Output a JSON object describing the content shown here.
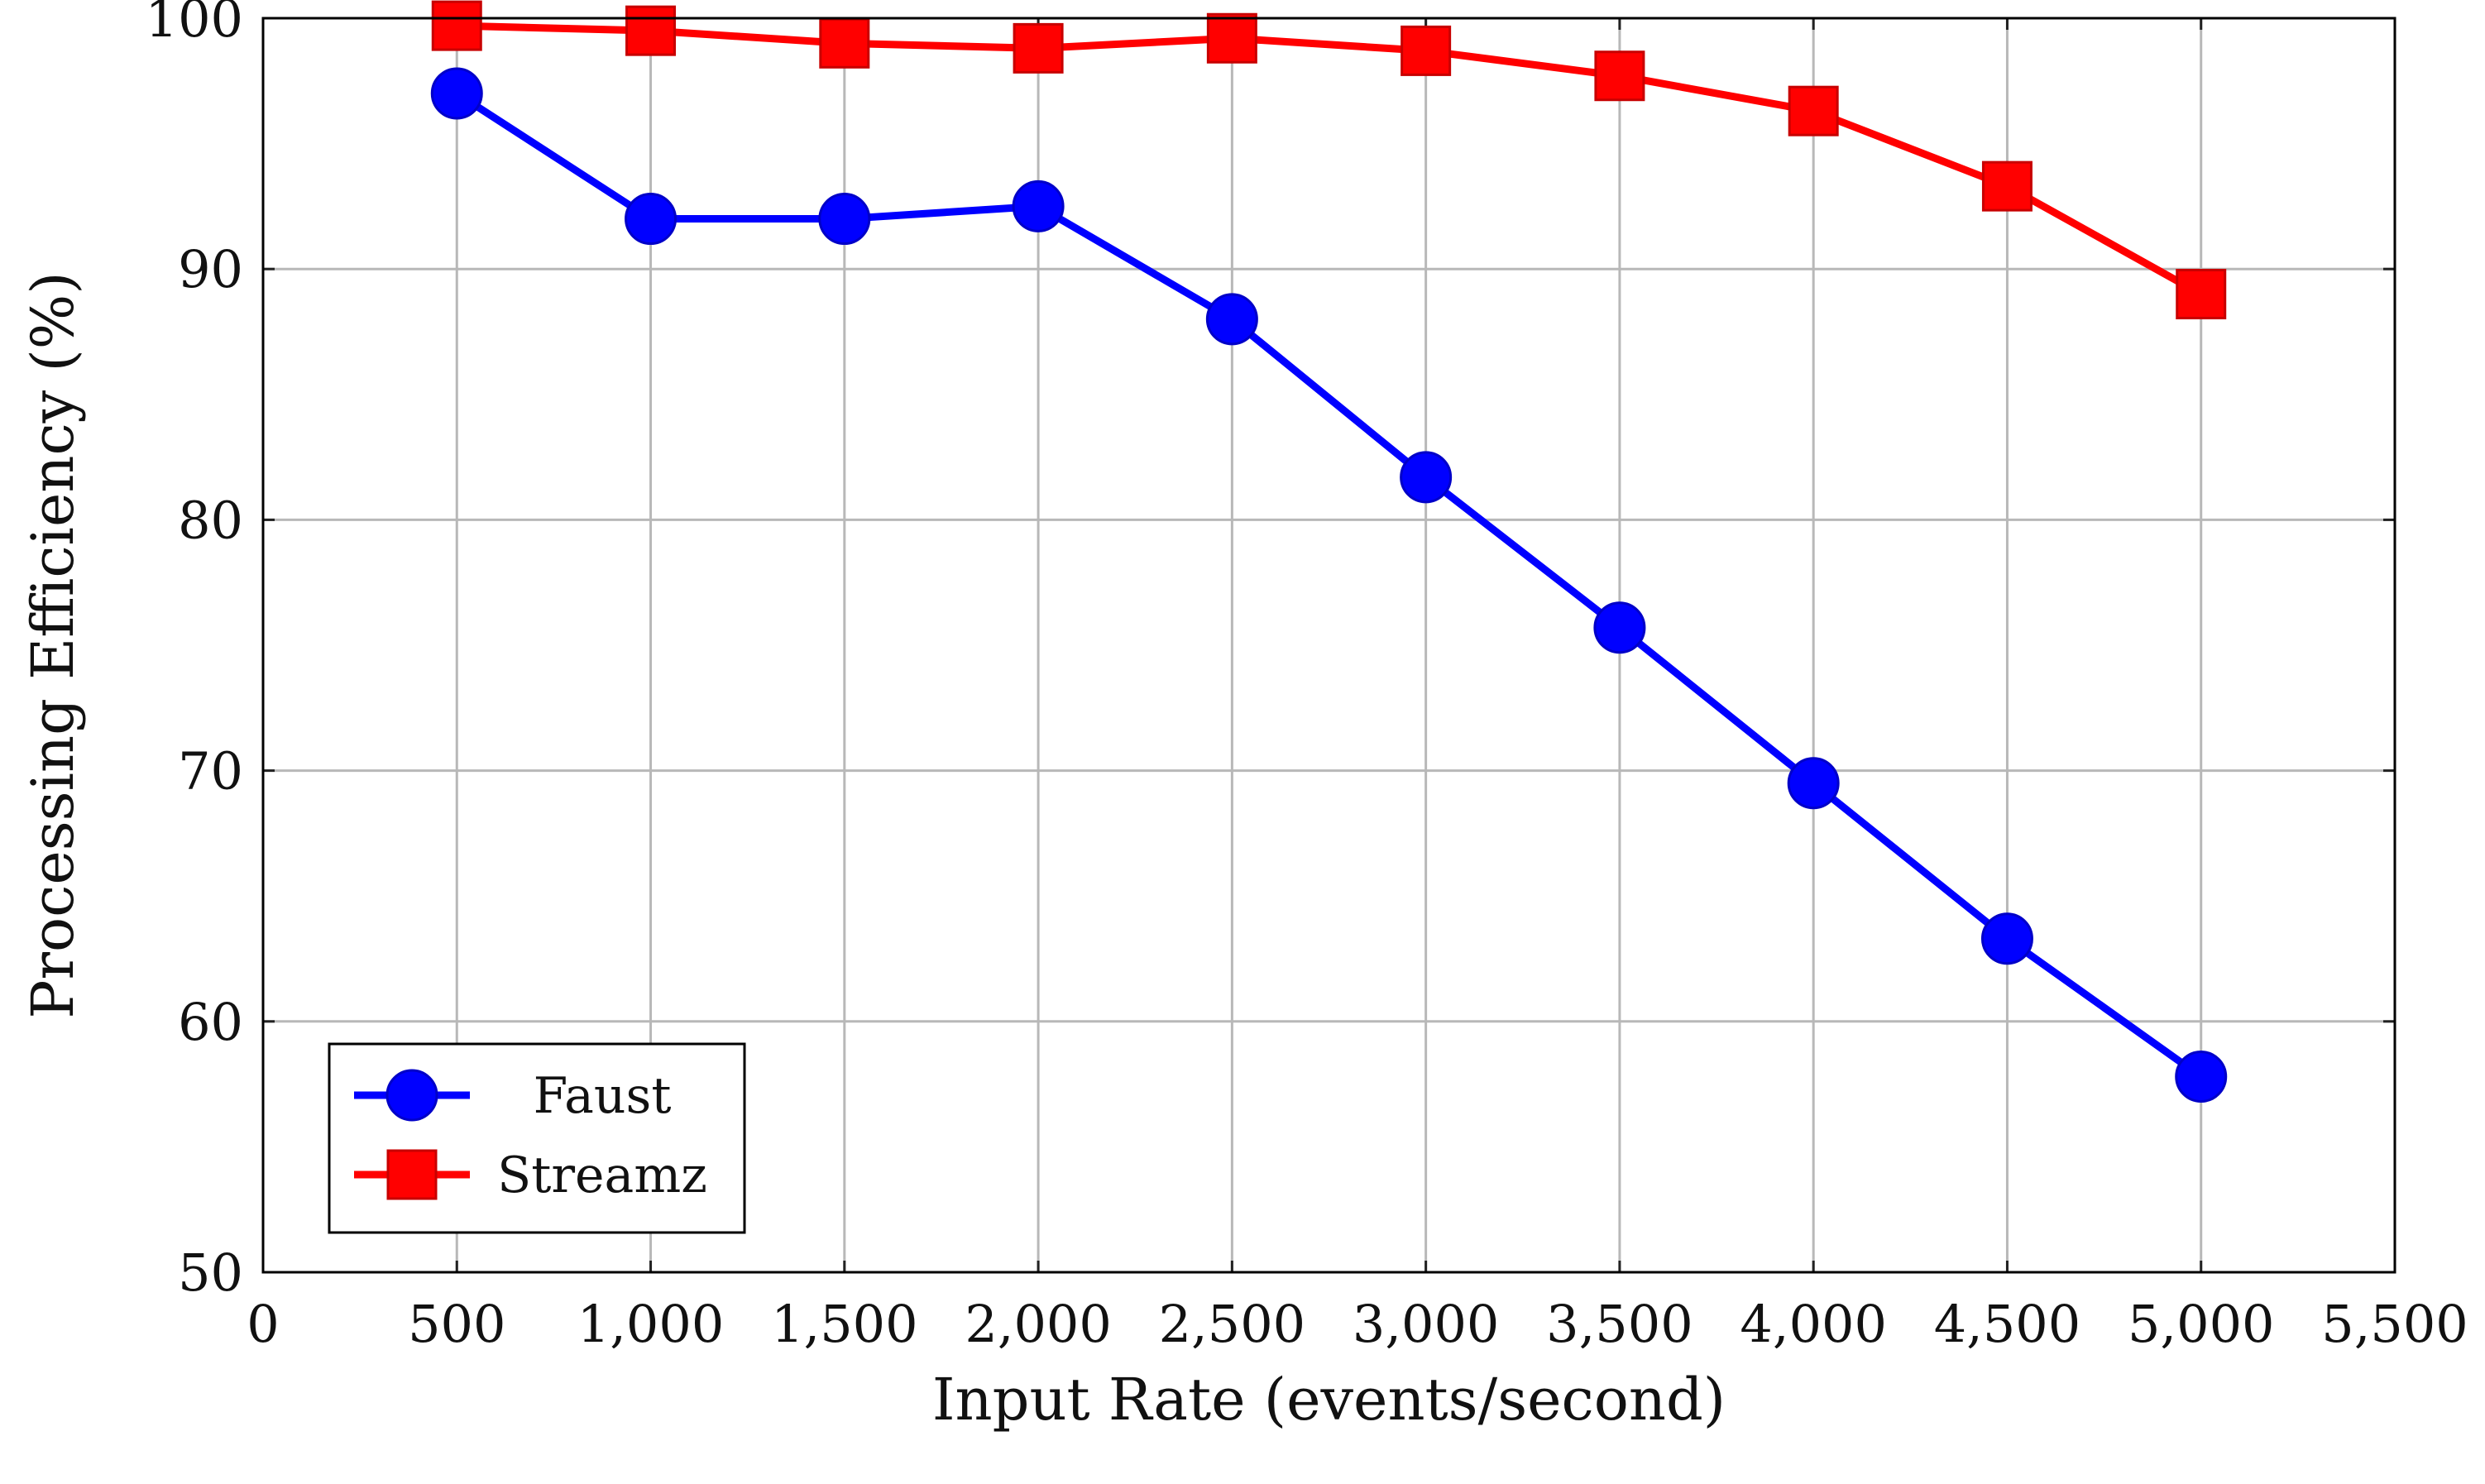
{
  "chart_data": {
    "type": "line",
    "title": "",
    "xlabel": "Input Rate (events/second)",
    "ylabel": "Processing Efficiency (%)",
    "xlim": [
      0,
      5500
    ],
    "ylim": [
      50,
      100
    ],
    "grid": true,
    "legend_position": "bottom-left",
    "x_ticks": [
      {
        "value": 0,
        "label": "0"
      },
      {
        "value": 500,
        "label": "500"
      },
      {
        "value": 1000,
        "label": "1,000"
      },
      {
        "value": 1500,
        "label": "1,500"
      },
      {
        "value": 2000,
        "label": "2,000"
      },
      {
        "value": 2500,
        "label": "2,500"
      },
      {
        "value": 3000,
        "label": "3,000"
      },
      {
        "value": 3500,
        "label": "3,500"
      },
      {
        "value": 4000,
        "label": "4,000"
      },
      {
        "value": 4500,
        "label": "4,500"
      },
      {
        "value": 5000,
        "label": "5,000"
      },
      {
        "value": 5500,
        "label": "5,500"
      }
    ],
    "y_ticks": [
      {
        "value": 50,
        "label": "50"
      },
      {
        "value": 60,
        "label": "60"
      },
      {
        "value": 70,
        "label": "70"
      },
      {
        "value": 80,
        "label": "80"
      },
      {
        "value": 90,
        "label": "90"
      },
      {
        "value": 100,
        "label": "100"
      }
    ],
    "x": [
      500,
      1000,
      1500,
      2000,
      2500,
      3000,
      3500,
      4000,
      4500,
      5000
    ],
    "series": [
      {
        "name": "Faust",
        "color": "#0000ff",
        "marker": "circle",
        "values": [
          97.0,
          92.0,
          92.0,
          92.5,
          88.0,
          81.7,
          75.7,
          69.5,
          63.3,
          57.8
        ]
      },
      {
        "name": "Streamz",
        "color": "#ff0000",
        "marker": "square",
        "values": [
          99.7,
          99.5,
          99.0,
          98.8,
          99.2,
          98.7,
          97.7,
          96.3,
          93.3,
          89.0
        ]
      }
    ]
  }
}
